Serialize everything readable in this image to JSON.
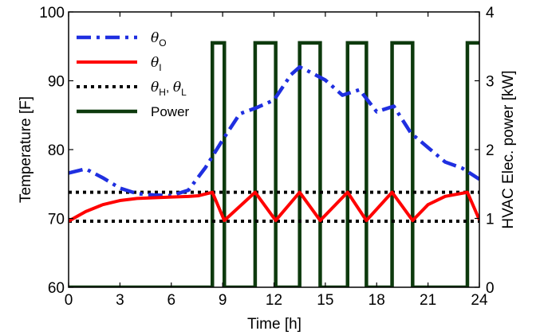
{
  "chart_data": {
    "type": "line",
    "xlabel": "Time [h]",
    "ylabel_left": "Temperature [F]",
    "ylabel_right": "HVAC Elec. power [kW]",
    "xlim": [
      0,
      24
    ],
    "ylim_left": [
      60,
      100
    ],
    "ylim_right": [
      0,
      4
    ],
    "xticks": [
      "0",
      "3",
      "6",
      "9",
      "12",
      "15",
      "18",
      "21",
      "24"
    ],
    "yticks_left": [
      "60",
      "70",
      "80",
      "90",
      "100"
    ],
    "yticks_right": [
      "0",
      "1",
      "2",
      "3",
      "4"
    ],
    "legend_position": "top-left",
    "grid": false,
    "colors": {
      "theta_O": "#1f2fe0",
      "theta_I": "#ff0000",
      "bounds": "#000000",
      "power": "#0d3a0d"
    },
    "series": [
      {
        "key": "theta_O",
        "name": "θO",
        "axis": "left",
        "x": [
          0,
          1,
          2,
          3,
          4,
          5,
          6,
          7,
          8,
          9,
          10,
          11,
          12,
          13,
          13.5,
          14,
          15,
          16,
          17,
          18,
          19,
          20,
          21,
          22,
          23,
          24
        ],
        "y": [
          76.6,
          77.2,
          75.9,
          74.4,
          73.6,
          73.4,
          73.3,
          74.1,
          77.4,
          81.4,
          85.2,
          86.1,
          87.2,
          90.9,
          92.0,
          91.4,
          90.1,
          87.9,
          88.7,
          85.5,
          86.3,
          82.4,
          80.3,
          78.2,
          77.3,
          75.7
        ]
      },
      {
        "key": "theta_I",
        "name": "θI",
        "axis": "left",
        "x": [
          0,
          0.5,
          1,
          2,
          3,
          4,
          5,
          6,
          7,
          7.6,
          8.4,
          9.1,
          10.9,
          12.1,
          13.5,
          14.7,
          16.3,
          17.4,
          18.9,
          20.1,
          21,
          22,
          23.3,
          24
        ],
        "y": [
          69.6,
          70.3,
          71.0,
          72.0,
          72.6,
          72.9,
          73.0,
          73.1,
          73.2,
          73.3,
          73.8,
          69.7,
          73.8,
          69.7,
          73.8,
          69.7,
          73.8,
          69.7,
          73.8,
          69.7,
          72.0,
          73.2,
          73.8,
          69.8
        ]
      },
      {
        "key": "bounds",
        "name": "θH, θL",
        "axis": "left",
        "upper": 73.8,
        "lower": 69.6
      },
      {
        "key": "power",
        "name": "Power",
        "axis": "right",
        "steps": [
          {
            "x": 0,
            "y": 0
          },
          {
            "x": 8.4,
            "y": 3.55
          },
          {
            "x": 9.1,
            "y": 0
          },
          {
            "x": 10.9,
            "y": 3.55
          },
          {
            "x": 12.1,
            "y": 0
          },
          {
            "x": 13.5,
            "y": 3.55
          },
          {
            "x": 14.7,
            "y": 0
          },
          {
            "x": 16.3,
            "y": 3.55
          },
          {
            "x": 17.4,
            "y": 0
          },
          {
            "x": 18.9,
            "y": 3.55
          },
          {
            "x": 20.1,
            "y": 0
          },
          {
            "x": 23.3,
            "y": 3.55
          },
          {
            "x": 24,
            "y": 3.55
          }
        ]
      }
    ],
    "legend": [
      {
        "key": "theta_O",
        "main": "θ",
        "sub": "O"
      },
      {
        "key": "theta_I",
        "main": "θ",
        "sub": "I"
      },
      {
        "key": "bounds",
        "main": "θ",
        "sub": "H",
        "sep": ", ",
        "main2": "θ",
        "sub2": "L"
      },
      {
        "key": "power",
        "text": "Power"
      }
    ]
  }
}
